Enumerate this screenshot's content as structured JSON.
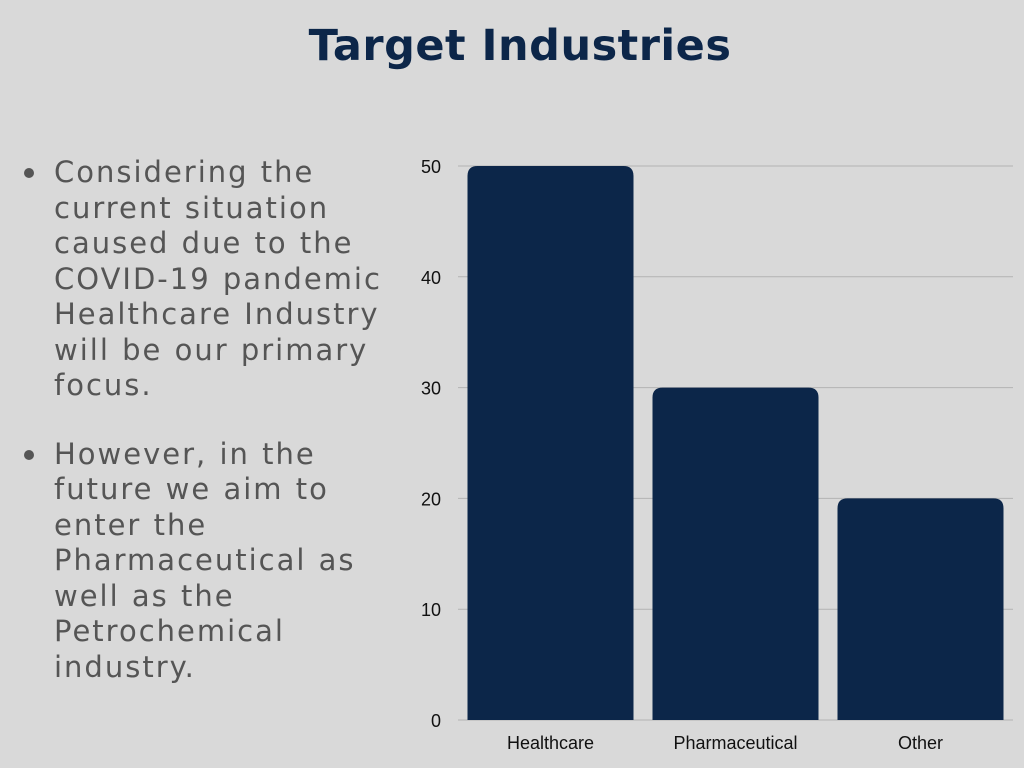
{
  "page": {
    "title": "Target Industries",
    "bullets": [
      "Considering the current situation caused due to the COVID-19 pandemic Healthcare Industry will be our primary focus.",
      "However, in the future we aim to enter the Pharmaceutical as well as the Petrochemical industry."
    ]
  },
  "colors": {
    "background": "#d9d9d9",
    "bar": "#0c2649",
    "title": "#0c2649",
    "text": "#555555",
    "grid": "#b3b3b3"
  },
  "chart_data": {
    "type": "bar",
    "categories": [
      "Healthcare",
      "Pharmaceutical",
      "Other"
    ],
    "values": [
      50,
      30,
      20
    ],
    "title": "",
    "xlabel": "",
    "ylabel": "",
    "ylim": [
      0,
      50
    ],
    "yticks": [
      0,
      10,
      20,
      30,
      40,
      50
    ],
    "grid": true,
    "legend": "none"
  }
}
